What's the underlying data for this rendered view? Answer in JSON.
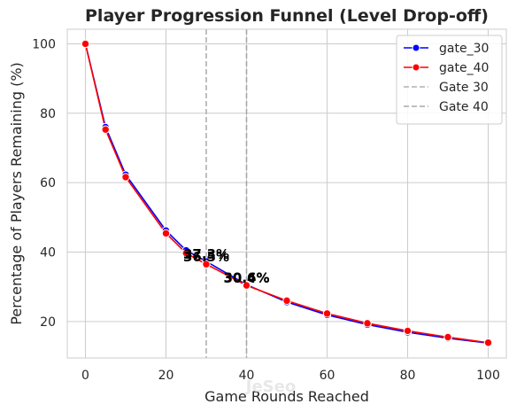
{
  "chart_data": {
    "type": "line",
    "title": "Player Progression Funnel (Level Drop-off)",
    "xlabel": "Game Rounds Reached",
    "ylabel": "Percentage of Players Remaining (%)",
    "xlim": [
      -4.5,
      104.5
    ],
    "ylim": [
      9.5,
      104.2
    ],
    "x_ticks": [
      0,
      20,
      40,
      60,
      80,
      100
    ],
    "y_ticks": [
      20,
      40,
      60,
      80,
      100
    ],
    "grid": true,
    "legend_position": "upper right",
    "x": [
      0,
      5,
      10,
      20,
      25,
      30,
      40,
      50,
      60,
      70,
      80,
      90,
      100
    ],
    "series": [
      {
        "name": "gate_30",
        "color": "#0000ff",
        "values": [
          100,
          76.0,
          62.3,
          46.2,
          40.5,
          37.3,
          30.6,
          25.6,
          21.9,
          19.1,
          16.9,
          15.2,
          13.8
        ]
      },
      {
        "name": "gate_40",
        "color": "#ff0000",
        "values": [
          100,
          75.3,
          61.6,
          45.4,
          39.7,
          36.5,
          30.4,
          26.0,
          22.3,
          19.5,
          17.3,
          15.5,
          13.9
        ]
      }
    ],
    "reference_lines": [
      {
        "name": "Gate 30",
        "x": 30,
        "color": "#b0b0b0"
      },
      {
        "name": "Gate 40",
        "x": 40,
        "color": "#a8a8a8"
      }
    ],
    "annotations": [
      {
        "text": "37.3%",
        "x": 30,
        "y": 37.3
      },
      {
        "text": "36.5%",
        "x": 30,
        "y": 36.5
      },
      {
        "text": "30.6%",
        "x": 40,
        "y": 30.6
      },
      {
        "text": "30.4%",
        "x": 40,
        "y": 30.4
      }
    ],
    "watermark": "JeSeo"
  }
}
